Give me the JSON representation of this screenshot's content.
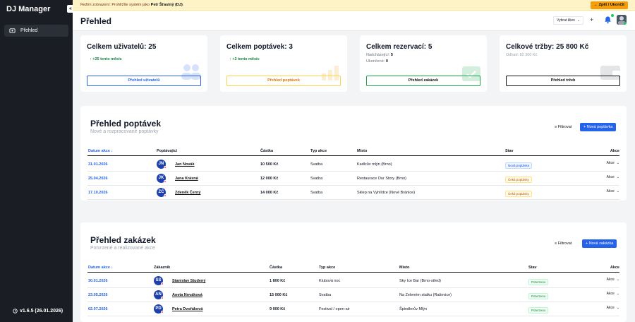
{
  "app": {
    "title": "DJ Manager",
    "collapse_icon": "«",
    "version": "v1.6.5 (26.01.2026)"
  },
  "sidebar": {
    "items": [
      {
        "label": "Přehled",
        "icon": "dashboard-icon"
      }
    ]
  },
  "banner": {
    "prefix": "Režim zobrazení: Prohlížíte systém jako",
    "user": "Petr Šťastný (DJ)",
    "suffix": ".",
    "exit_label": "← Zpět / Ukončit"
  },
  "header": {
    "title": "Přehled",
    "client_select": "Vybrat klien",
    "plus": "+"
  },
  "cards": [
    {
      "title": "Celkem uživatelů: 25",
      "trend": "↑ +25 tento měsíc",
      "button": "Přehled uživatelů"
    },
    {
      "title": "Celkem poptávek: 3",
      "trend": "↑ +2 tento měsíc",
      "button": "Přehled poptávek"
    },
    {
      "title": "Celkem rezervací: 5",
      "line1_label": "Nadcházející:",
      "line1_value": "5",
      "line2_label": "Ukončené:",
      "line2_value": "0",
      "button": "Přehled zakázek"
    },
    {
      "title": "Celkové tržby: 25 800 Kč",
      "sub": "Odhad: 82 300 Kč",
      "button": "Přehled tržeb"
    }
  ],
  "inquiries": {
    "title": "Přehled poptávek",
    "subtitle": "Nové a rozpracované poptávky",
    "filter": "≡ Filtrovat",
    "new": "+ Nová poptávka",
    "columns": [
      "Datum akce ↓",
      "Poptávající",
      "Částka",
      "Typ akce",
      "Místo",
      "Stav",
      "Akce"
    ],
    "rows": [
      {
        "date": "31.01.2026",
        "initials": "JN",
        "name": "Jan Novák",
        "amount": "10 500 Kč",
        "type": "Svatba",
        "place": "Kadlcův mlýn (Brno)",
        "status": "Nová poptávka",
        "action": "Akce"
      },
      {
        "date": "25.04.2026",
        "initials": "JK",
        "name": "Jana Krásná",
        "amount": "12 000 Kč",
        "type": "Svatba",
        "place": "Restaurace Our Story (Brno)",
        "status": "Čeká poptávky",
        "action": "Akce"
      },
      {
        "date": "17.10.2026",
        "initials": "ZČ",
        "name": "Zdeněk Černý",
        "amount": "14 000 Kč",
        "type": "Svatba",
        "place": "Sklep na Vyhlídce (Nové Bránice)",
        "status": "Čeká poptávky",
        "action": "Akce"
      }
    ]
  },
  "orders": {
    "title": "Přehled zakázek",
    "subtitle": "Potvrzené a realizované akce",
    "filter": "≡ Filtrovat",
    "new": "+ Nová zakázka",
    "columns": [
      "Datum akce ↓",
      "Zákazník",
      "Částka",
      "Typ akce",
      "Místo",
      "Stav",
      "Akce"
    ],
    "rows": [
      {
        "date": "30.01.2026",
        "initials": "SS",
        "name": "Stanislav Studený",
        "amount": "1 800 Kč",
        "type": "Klubová noc",
        "place": "Sky Ice Bar (Brno-střed)",
        "status": "Potvrzeno",
        "action": "Akce"
      },
      {
        "date": "23.05.2026",
        "initials": "AN",
        "name": "Aneta Nováková",
        "amount": "15 000 Kč",
        "type": "Svatba",
        "place": "Na Zeleném statku (Rašovice)",
        "status": "Potvrzeno",
        "action": "Akce"
      },
      {
        "date": "02.07.2026",
        "initials": "PD",
        "name": "Petra Dvořáková",
        "amount": "9 000 Kč",
        "type": "Festival / open-air",
        "place": "Špindlerův Mlýn",
        "status": "Potvrzeno",
        "action": "Akce"
      }
    ]
  }
}
